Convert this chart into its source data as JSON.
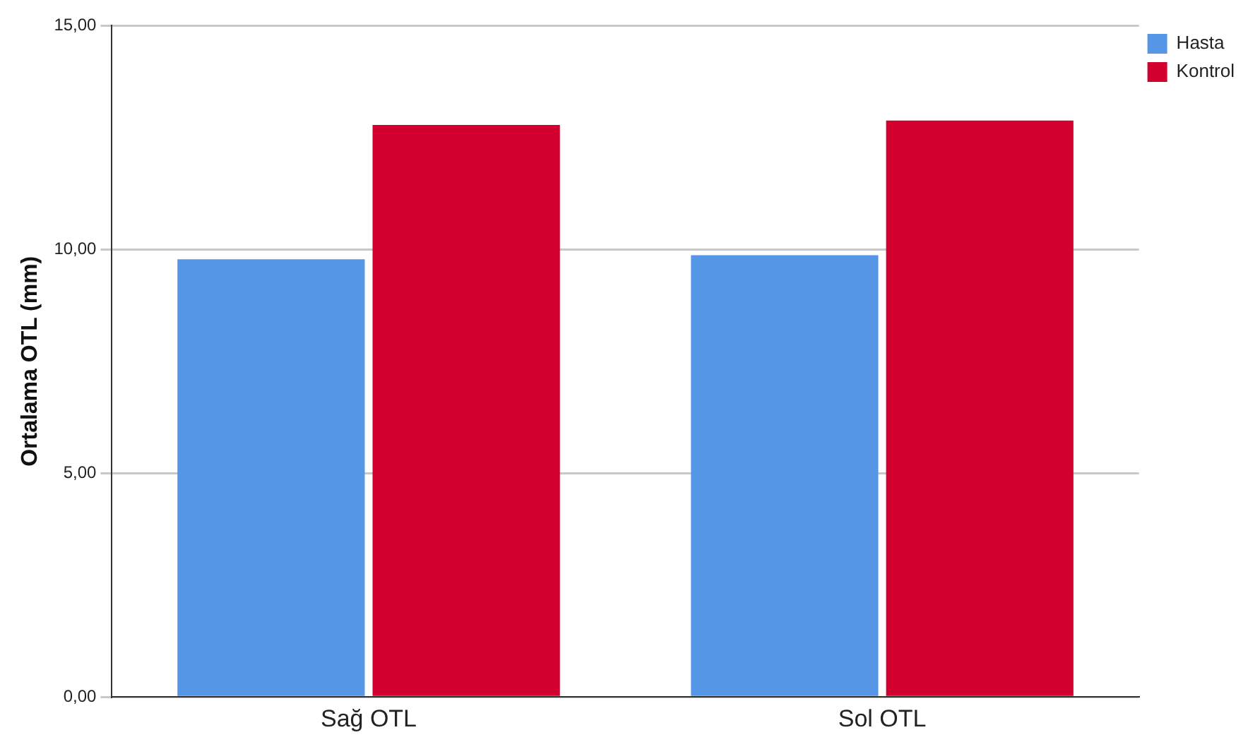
{
  "chart_data": {
    "type": "bar",
    "ylabel": "Ortalama OTL (mm)",
    "categories": [
      "Sağ OTL",
      "Sol OTL"
    ],
    "series": [
      {
        "name": "Hasta",
        "color": "#5596e6",
        "values": [
          9.78,
          9.87
        ]
      },
      {
        "name": "Kontrol",
        "color": "#d2002e",
        "values": [
          12.78,
          12.88
        ]
      }
    ],
    "ylim": [
      0,
      15
    ],
    "yticks": [
      {
        "value": 0,
        "label": "0,00"
      },
      {
        "value": 5,
        "label": "5,00"
      },
      {
        "value": 10,
        "label": "10,00"
      },
      {
        "value": 15,
        "label": "15,00"
      }
    ],
    "grid": "y",
    "legend": "top right"
  }
}
